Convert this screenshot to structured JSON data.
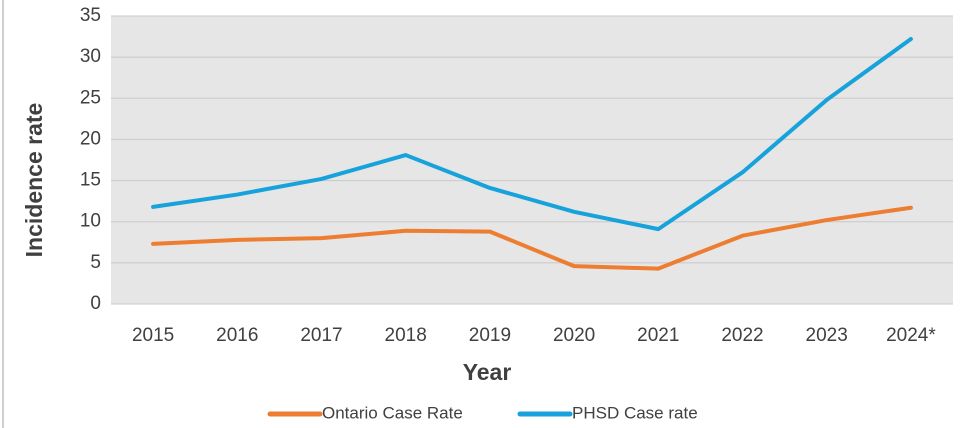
{
  "chart_data": {
    "type": "line",
    "x_label": "Year",
    "y_label": "Incidence rate",
    "categories": [
      "2015",
      "2016",
      "2017",
      "2018",
      "2019",
      "2020",
      "2021",
      "2022",
      "2023",
      "2024*"
    ],
    "series": [
      {
        "name": "Ontario Case Rate",
        "color": "#ed7d31",
        "values": [
          7.3,
          7.8,
          8.0,
          8.9,
          8.8,
          4.6,
          4.3,
          8.3,
          10.2,
          11.7
        ]
      },
      {
        "name": "PHSD Case rate",
        "color": "#17a2db",
        "values": [
          11.8,
          13.3,
          15.2,
          18.1,
          14.1,
          11.2,
          9.1,
          16.0,
          24.8,
          32.2
        ]
      }
    ],
    "ylim": [
      0,
      35
    ],
    "yticks": [
      0,
      5,
      10,
      15,
      20,
      25,
      30,
      35
    ],
    "grid": true,
    "legend": "bottom"
  }
}
